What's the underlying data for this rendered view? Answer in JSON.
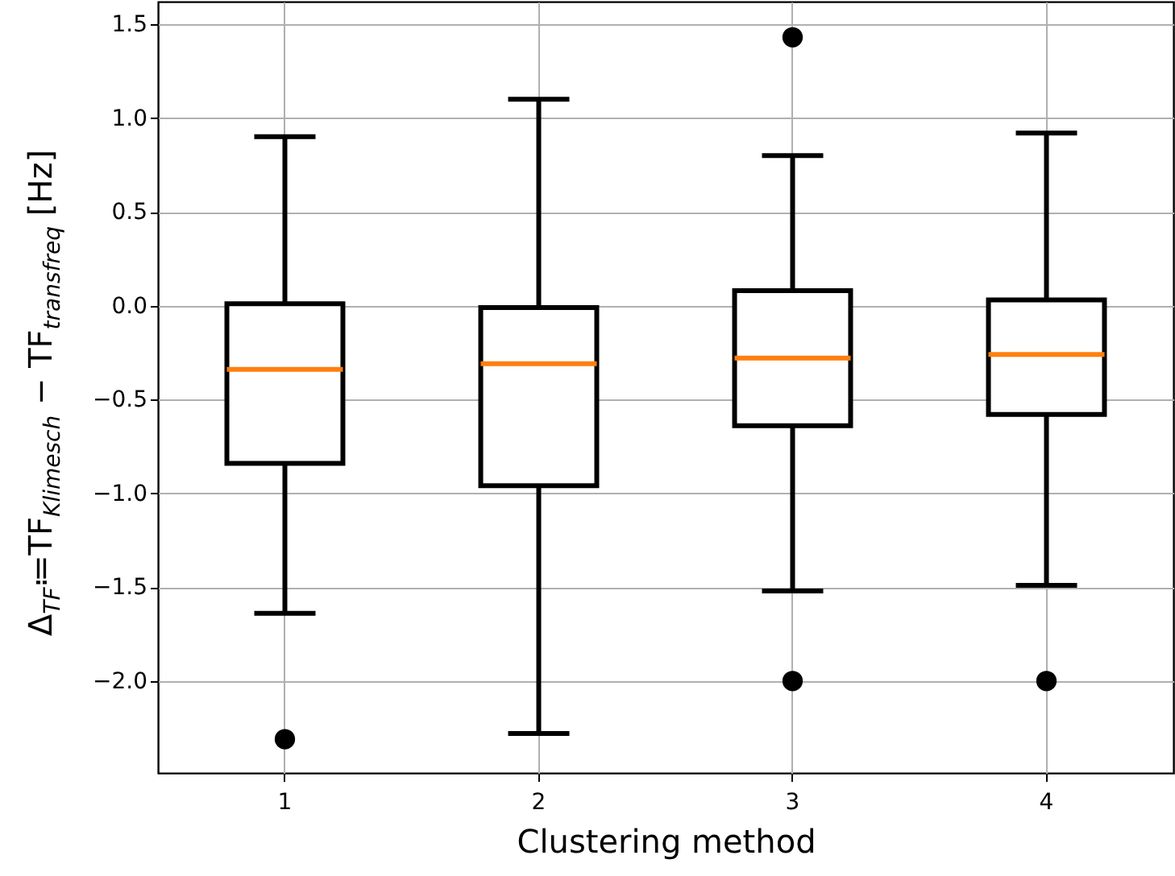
{
  "chart_data": {
    "type": "box",
    "xlabel": "Clustering method",
    "ylabel": "Δ$_{TF}$≔TF$_{Klimesch}$ − TF$_{transfreq}$ [Hz]",
    "categories": [
      "1",
      "2",
      "3",
      "4"
    ],
    "boxes": [
      {
        "low": -1.64,
        "q1": -0.84,
        "median": -0.34,
        "q3": 0.01,
        "high": 0.9,
        "outliers": [
          -2.31
        ]
      },
      {
        "low": -2.28,
        "q1": -0.96,
        "median": -0.31,
        "q3": -0.01,
        "high": 1.1
      },
      {
        "low": -1.52,
        "q1": -0.64,
        "median": -0.28,
        "q3": 0.08,
        "high": 0.8,
        "outliers": [
          1.43,
          -2.0
        ]
      },
      {
        "low": -1.49,
        "q1": -0.58,
        "median": -0.26,
        "q3": 0.03,
        "high": 0.92,
        "outliers": [
          -2.0
        ]
      }
    ],
    "color": "#000000",
    "ylim": [
      -2.49,
      1.62
    ],
    "yticks": [
      {
        "value": -2.0,
        "label": "−2.0"
      },
      {
        "value": -1.5,
        "label": "−1.5"
      },
      {
        "value": -1.0,
        "label": "−1.0"
      },
      {
        "value": -0.5,
        "label": "−0.5"
      },
      {
        "value": 0.0,
        "label": "0.0"
      },
      {
        "value": 0.5,
        "label": "0.5"
      },
      {
        "value": 1.0,
        "label": "1.0"
      },
      {
        "value": 1.5,
        "label": "1.5"
      }
    ],
    "grid": true
  }
}
